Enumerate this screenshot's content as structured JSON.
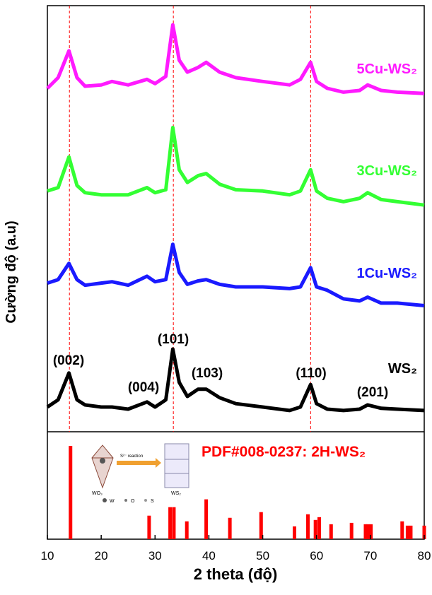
{
  "chart_data": [
    {
      "type": "line",
      "y_label": "Cường độ (a.u)",
      "xlim": [
        10,
        80
      ],
      "ylim": [
        0,
        100
      ],
      "x": [
        10,
        12,
        14,
        15.5,
        17,
        20,
        22,
        25,
        28.5,
        30,
        32,
        33.3,
        34.5,
        36,
        38,
        39.5,
        42,
        45,
        50,
        55,
        57,
        58.9,
        60,
        62,
        65,
        68,
        69.5,
        72,
        75,
        80
      ],
      "series": [
        {
          "name": "5Cu-WS₂",
          "color": "#ff1aff",
          "values": [
            80.6,
            83.1,
            89.4,
            83.1,
            81.1,
            81.4,
            82.2,
            81.4,
            82.7,
            81.7,
            83.4,
            95.5,
            87.2,
            84.4,
            85.5,
            86.7,
            84.4,
            83.1,
            82.2,
            81.4,
            82.7,
            86.7,
            82.2,
            80.6,
            79.7,
            80.1,
            81.4,
            80.1,
            79.7,
            79.4
          ]
        },
        {
          "name": "3Cu-WS₂",
          "color": "#33ff33",
          "values": [
            56.5,
            57.3,
            64.5,
            57.8,
            56.1,
            55.6,
            55.6,
            55.6,
            57.3,
            56.1,
            56.8,
            71.4,
            61.5,
            58.5,
            60.1,
            60.6,
            58.1,
            56.8,
            56.5,
            55.6,
            56.5,
            61.5,
            56.5,
            54.8,
            54,
            54.8,
            56.1,
            54.5,
            54,
            53.2
          ]
        },
        {
          "name": "1Cu-WS₂",
          "color": "#1a1aff",
          "values": [
            34.9,
            35.7,
            39.5,
            35.7,
            34.4,
            34.9,
            35.2,
            34.4,
            36.5,
            35.2,
            35.7,
            44,
            37.4,
            34.6,
            35.4,
            35.7,
            34.6,
            34,
            34,
            33.6,
            34,
            38.5,
            34,
            33.2,
            31.2,
            30.7,
            31.6,
            30.2,
            30.2,
            29.6
          ]
        },
        {
          "name": "WS₂",
          "color": "#000000",
          "values": [
            5.8,
            7.5,
            13.8,
            7.5,
            6.3,
            5.8,
            5.8,
            5.3,
            7,
            5.8,
            7.5,
            19.4,
            11.6,
            8.3,
            10,
            10,
            8,
            6.6,
            5.8,
            5,
            5.8,
            11.1,
            6.6,
            5.3,
            5,
            5.3,
            6.3,
            5.5,
            5.3,
            5
          ]
        }
      ],
      "annotations": [
        "(002)",
        "(004)",
        "(101)",
        "(103)",
        "(110)",
        "(201)"
      ],
      "vlines": [
        14.1,
        33.4,
        58.9
      ],
      "vline_color": "#ff0000"
    },
    {
      "type": "bar",
      "title": "PDF#008-0237: 2H-WS₂",
      "x_label": "2 theta (độ)",
      "xlim": [
        10,
        80
      ],
      "ylim": [
        0,
        100
      ],
      "xticks": [
        10,
        20,
        30,
        40,
        50,
        60,
        70,
        80
      ],
      "color": "#ff0000",
      "x": [
        14.3,
        28.9,
        32.8,
        33.5,
        35.9,
        39.5,
        43.9,
        49.7,
        55.9,
        58.4,
        59.8,
        60.5,
        62.7,
        66.5,
        69.1,
        69.5,
        70.1,
        75.9,
        76.9,
        77.5,
        80
      ],
      "values": [
        86.8,
        21.9,
        29.8,
        29.8,
        16.6,
        37.1,
        19.9,
        25.2,
        11.9,
        23.2,
        17.9,
        20.5,
        13.9,
        15.2,
        13.9,
        13.9,
        13.9,
        16.6,
        12.6,
        12.6,
        12.6
      ],
      "inset_labels": [
        "S²⁻ reaction",
        "WO₃",
        "WS₂",
        "W",
        "O",
        "S"
      ]
    }
  ]
}
